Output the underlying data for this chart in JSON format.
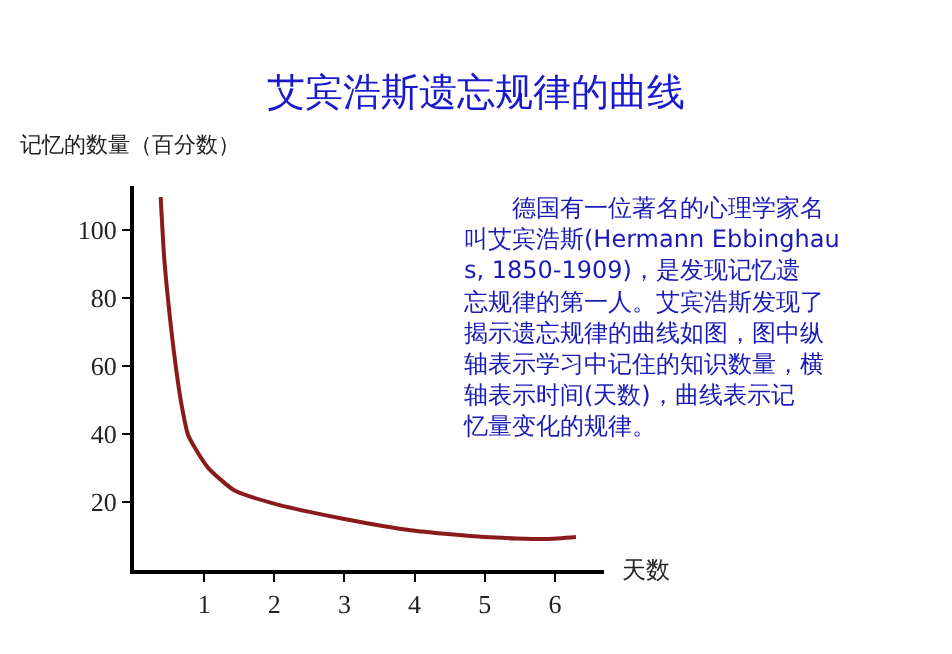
{
  "chart_data": {
    "type": "line",
    "title": "艾宾浩斯遗忘规律的曲线",
    "ylabel": "记忆的数量（百分数）",
    "xlabel": "天数",
    "x": [
      0.38,
      0.43,
      0.48,
      0.53,
      0.6,
      0.67,
      0.77,
      0.87,
      1.06,
      1.44,
      2.02,
      2.5,
      2.98,
      3.94,
      5.0,
      5.87,
      6.3
    ],
    "series": [
      {
        "color": "#8b1a1a",
        "values": [
          109.7,
          92,
          80.6,
          70.9,
          59.2,
          49.5,
          39.8,
          35.9,
          30,
          23.3,
          19.4,
          17.1,
          15.1,
          11.7,
          9.7,
          9.1,
          9.7
        ]
      }
    ],
    "xlim": [
      0,
      6.7
    ],
    "ylim": [
      0,
      113
    ],
    "xticks": [
      1,
      2,
      3,
      4,
      5,
      6
    ],
    "yticks": [
      20,
      40,
      60,
      80,
      100
    ],
    "marker": "none",
    "line_style": "solid",
    "annotations": [
      "　　德国有一位著名的心理学家名叫艾宾浩斯(Hermann Ebbinghaus, 1850-1909)，是发现记忆遗忘规律的第一人。艾宾浩斯发现了揭示遗忘规律的曲线如图，图中纵轴表示学习中记住的知识数量，横轴表示时间(天数)，曲线表示记忆量变化的规律。"
    ]
  }
}
